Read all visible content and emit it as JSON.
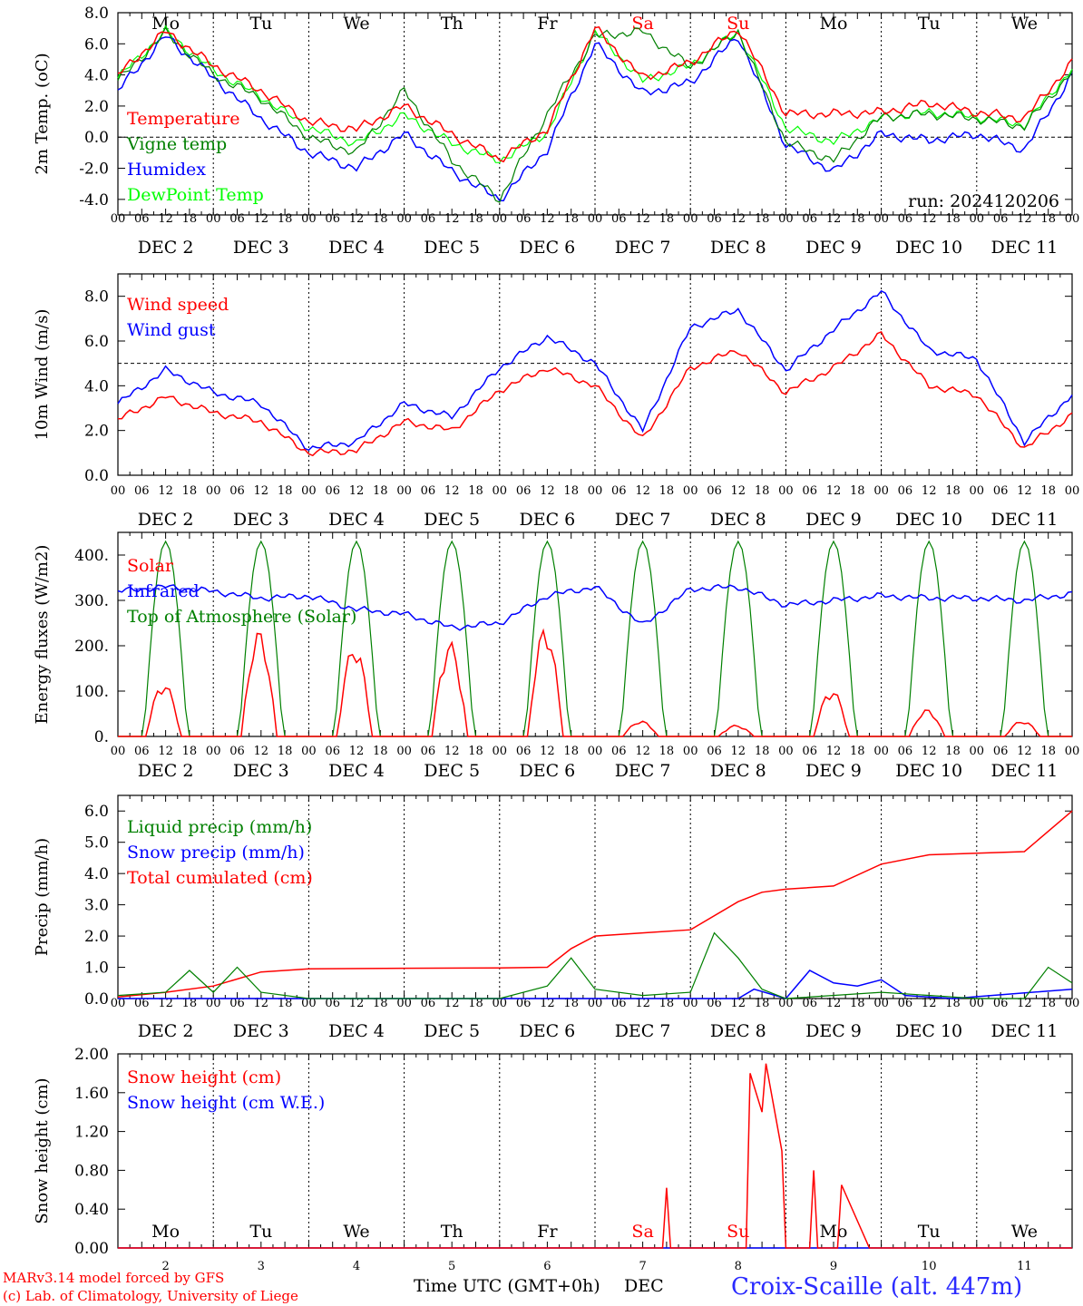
{
  "colors": {
    "red": "#ff0000",
    "green": "#008000",
    "blue": "#0000ff",
    "lightgreen": "#00ff00",
    "brand_blue": "#2a2aff"
  },
  "footer": {
    "credit_line1": "MARv3.14 model forced by GFS",
    "credit_line2": "(c) Lab. of Climatology, University of Liege",
    "time_axis_label": "Time UTC (GMT+0h)",
    "month_label": "DEC",
    "station": "Croix-Scaille (alt. 447m)"
  },
  "chart_data": [
    {
      "type": "line",
      "id": "temp",
      "ylabel": "2m Temp. (oC)",
      "ylim": [
        -5,
        8
      ],
      "yticks": [
        -4,
        -2,
        0,
        2,
        4,
        6,
        8
      ],
      "ytick_labels": [
        "-4.0",
        "-2.0",
        "0.0",
        "2.0",
        "4.0",
        "6.0",
        "8.0"
      ],
      "ref_line": 0,
      "run_label": "run: 2024120206",
      "top_day_labels": [
        "Mo",
        "Tu",
        "We",
        "Th",
        "Fr",
        "Sa",
        "Su",
        "Mo",
        "Tu",
        "We"
      ],
      "legend_placement": "top-left",
      "series": [
        {
          "name": "Temperature",
          "color": "red",
          "x": [
            0,
            12,
            24,
            36,
            48,
            60,
            72,
            84,
            96,
            108,
            120,
            132,
            144,
            156,
            168,
            180,
            192,
            204,
            216,
            228,
            240
          ],
          "values": [
            4.0,
            6.8,
            4.6,
            3.0,
            1.0,
            0.5,
            2.0,
            0.2,
            -1.4,
            0.5,
            7.0,
            3.8,
            4.8,
            7.0,
            1.5,
            1.5,
            1.6,
            2.2,
            1.6,
            1.2,
            4.8
          ]
        },
        {
          "name": "Vigne temp",
          "color": "green",
          "x": [
            0,
            12,
            24,
            36,
            48,
            60,
            72,
            84,
            96,
            108,
            120,
            132,
            144,
            156,
            168,
            180,
            192,
            204,
            216,
            228,
            240
          ],
          "values": [
            3.6,
            6.7,
            4.0,
            2.5,
            0.0,
            -1.0,
            3.0,
            -1.5,
            -4.0,
            1.5,
            6.5,
            6.8,
            4.5,
            6.8,
            -0.3,
            -1.5,
            1.3,
            1.5,
            1.2,
            0.7,
            4.2
          ]
        },
        {
          "name": "Humidex",
          "color": "blue",
          "x": [
            0,
            12,
            24,
            36,
            48,
            60,
            72,
            84,
            96,
            108,
            120,
            132,
            144,
            156,
            168,
            180,
            192,
            204,
            216,
            228,
            240
          ],
          "values": [
            3.0,
            6.5,
            3.8,
            1.2,
            -1.0,
            -2.0,
            0.2,
            -2.2,
            -4.0,
            -0.8,
            6.0,
            2.8,
            3.5,
            6.5,
            -0.5,
            -2.2,
            0.2,
            -0.2,
            0.2,
            -0.8,
            4.0
          ]
        },
        {
          "name": "DewPoint Temp",
          "color": "lightgreen",
          "x": [
            0,
            12,
            24,
            36,
            48,
            60,
            72,
            84,
            96,
            108,
            120,
            132,
            144,
            156,
            168,
            180,
            192,
            204,
            216,
            228,
            240
          ],
          "values": [
            3.8,
            6.8,
            4.3,
            2.6,
            0.6,
            -0.4,
            1.4,
            -0.4,
            -1.5,
            0.3,
            6.8,
            3.6,
            4.6,
            6.8,
            0.6,
            -0.3,
            1.2,
            1.6,
            1.3,
            0.8,
            4.4
          ]
        }
      ]
    },
    {
      "type": "line",
      "id": "wind",
      "ylabel": "10m Wind (m/s)",
      "ylim": [
        0,
        9
      ],
      "yticks": [
        0,
        2,
        4,
        6,
        8
      ],
      "ytick_labels": [
        "0.0",
        "2.0",
        "4.0",
        "6.0",
        "8.0"
      ],
      "ref_line": 5,
      "legend_placement": "top-left",
      "series": [
        {
          "name": "Wind speed",
          "color": "red",
          "x": [
            0,
            12,
            24,
            36,
            48,
            60,
            72,
            84,
            96,
            108,
            120,
            132,
            144,
            156,
            168,
            180,
            192,
            204,
            216,
            228,
            240
          ],
          "values": [
            2.5,
            3.5,
            2.8,
            2.4,
            1.0,
            1.1,
            2.4,
            2.0,
            3.8,
            4.8,
            4.0,
            1.6,
            4.8,
            5.6,
            3.7,
            4.8,
            6.3,
            4.0,
            3.6,
            1.2,
            2.7
          ]
        },
        {
          "name": "Wind gust",
          "color": "blue",
          "x": [
            0,
            12,
            24,
            36,
            48,
            60,
            72,
            84,
            96,
            108,
            120,
            132,
            144,
            156,
            168,
            180,
            192,
            204,
            216,
            228,
            240
          ],
          "values": [
            3.2,
            4.7,
            3.7,
            3.2,
            1.2,
            1.5,
            3.2,
            2.6,
            4.8,
            6.2,
            5.0,
            2.0,
            6.6,
            7.4,
            4.7,
            6.5,
            8.2,
            5.6,
            5.2,
            1.5,
            3.6
          ]
        }
      ]
    },
    {
      "type": "line",
      "id": "energy",
      "ylabel": "Energy fluxes (W/m2)",
      "ylim": [
        0,
        450
      ],
      "yticks": [
        0,
        100,
        200,
        300,
        400
      ],
      "ytick_labels": [
        "0.",
        "100.",
        "200.",
        "300.",
        "400."
      ],
      "legend_placement": "top-left",
      "solar_peaks": [
        120,
        235,
        205,
        210,
        245,
        35,
        25,
        105,
        60,
        35
      ],
      "toa_peak": 430,
      "series": [
        {
          "name": "Solar",
          "color": "red"
        },
        {
          "name": "Infrared",
          "color": "blue",
          "x": [
            0,
            12,
            24,
            36,
            48,
            60,
            72,
            84,
            96,
            108,
            120,
            132,
            144,
            156,
            168,
            180,
            192,
            204,
            216,
            228,
            240
          ],
          "values": [
            320,
            330,
            320,
            305,
            310,
            280,
            270,
            240,
            250,
            310,
            330,
            245,
            325,
            330,
            290,
            300,
            310,
            305,
            305,
            300,
            315
          ]
        },
        {
          "name": "Top of Atmosphere (Solar)",
          "color": "green"
        }
      ]
    },
    {
      "type": "line",
      "id": "precip",
      "ylabel": "Precip (mm/h)",
      "ylim": [
        0,
        6.5
      ],
      "yticks": [
        0,
        1,
        2,
        3,
        4,
        5,
        6
      ],
      "ytick_labels": [
        "0.0",
        "1.0",
        "2.0",
        "3.0",
        "4.0",
        "5.0",
        "6.0"
      ],
      "legend_placement": "top-left",
      "series": [
        {
          "name": "Liquid precip (mm/h)",
          "color": "green",
          "x": [
            0,
            12,
            18,
            24,
            30,
            36,
            48,
            72,
            96,
            108,
            114,
            120,
            132,
            144,
            150,
            156,
            162,
            168,
            192,
            216,
            228,
            234,
            240
          ],
          "values": [
            0.1,
            0.2,
            0.9,
            0.2,
            1.0,
            0.2,
            0.0,
            0.0,
            0.0,
            0.4,
            1.3,
            0.3,
            0.1,
            0.2,
            2.1,
            1.3,
            0.3,
            0.0,
            0.2,
            0.0,
            0.0,
            1.0,
            0.5
          ]
        },
        {
          "name": "Snow precip (mm/h)",
          "color": "blue",
          "x": [
            0,
            12,
            24,
            36,
            48,
            72,
            96,
            120,
            144,
            156,
            160,
            168,
            174,
            180,
            186,
            192,
            198,
            210,
            240
          ],
          "values": [
            0.0,
            0.0,
            0.0,
            0.0,
            0.0,
            0.0,
            0.0,
            0.0,
            0.0,
            0.0,
            0.3,
            0.0,
            0.9,
            0.5,
            0.4,
            0.6,
            0.1,
            0.0,
            0.3
          ]
        },
        {
          "name": "Total cumulated (cm)",
          "color": "red",
          "x": [
            0,
            12,
            24,
            36,
            48,
            72,
            96,
            108,
            114,
            120,
            132,
            144,
            156,
            162,
            168,
            180,
            192,
            204,
            216,
            228,
            240
          ],
          "values": [
            0.05,
            0.2,
            0.4,
            0.85,
            0.95,
            0.97,
            0.98,
            1.0,
            1.6,
            2.0,
            2.1,
            2.2,
            3.1,
            3.4,
            3.5,
            3.6,
            4.3,
            4.6,
            4.65,
            4.7,
            6.0
          ]
        }
      ]
    },
    {
      "type": "line",
      "id": "snow",
      "ylabel": "Snow height (cm)",
      "ylim": [
        0,
        2
      ],
      "yticks": [
        0,
        0.4,
        0.8,
        1.2,
        1.6,
        2.0
      ],
      "ytick_labels": [
        "0.00",
        "0.40",
        "0.80",
        "1.20",
        "1.60",
        "2.00"
      ],
      "bottom_day_labels": [
        "Mo",
        "Tu",
        "We",
        "Th",
        "Fr",
        "Sa",
        "Su",
        "Mo",
        "Tu",
        "We"
      ],
      "legend_placement": "top-left",
      "series": [
        {
          "name": "Snow height (cm)",
          "color": "red",
          "x": [
            0,
            137,
            138,
            139,
            140,
            158,
            159,
            162,
            163,
            167,
            168,
            174,
            175,
            176,
            181,
            182,
            189,
            190,
            191,
            240
          ],
          "values": [
            0,
            0,
            0.62,
            0,
            0,
            0,
            1.8,
            1.4,
            1.9,
            1.0,
            0,
            0,
            0.8,
            0,
            0,
            0.65,
            0,
            0,
            0,
            0
          ]
        },
        {
          "name": "Snow height (cm W.E.)",
          "color": "blue",
          "x": [
            0,
            240
          ],
          "values": [
            0,
            0
          ]
        }
      ]
    }
  ],
  "x_axis": {
    "hours_total": 240,
    "hour_ticks": [
      "00",
      "06",
      "12",
      "18"
    ],
    "end_tick": "00",
    "date_labels": [
      "DEC  2",
      "DEC  3",
      "DEC  4",
      "DEC  5",
      "DEC  6",
      "DEC  7",
      "DEC  8",
      "DEC  9",
      "DEC 10",
      "DEC 11"
    ],
    "bottom_day_numbers": [
      "2",
      "3",
      "4",
      "5",
      "6",
      "7",
      "8",
      "9",
      "10",
      "11"
    ],
    "weekend_days": [
      5,
      6
    ]
  }
}
